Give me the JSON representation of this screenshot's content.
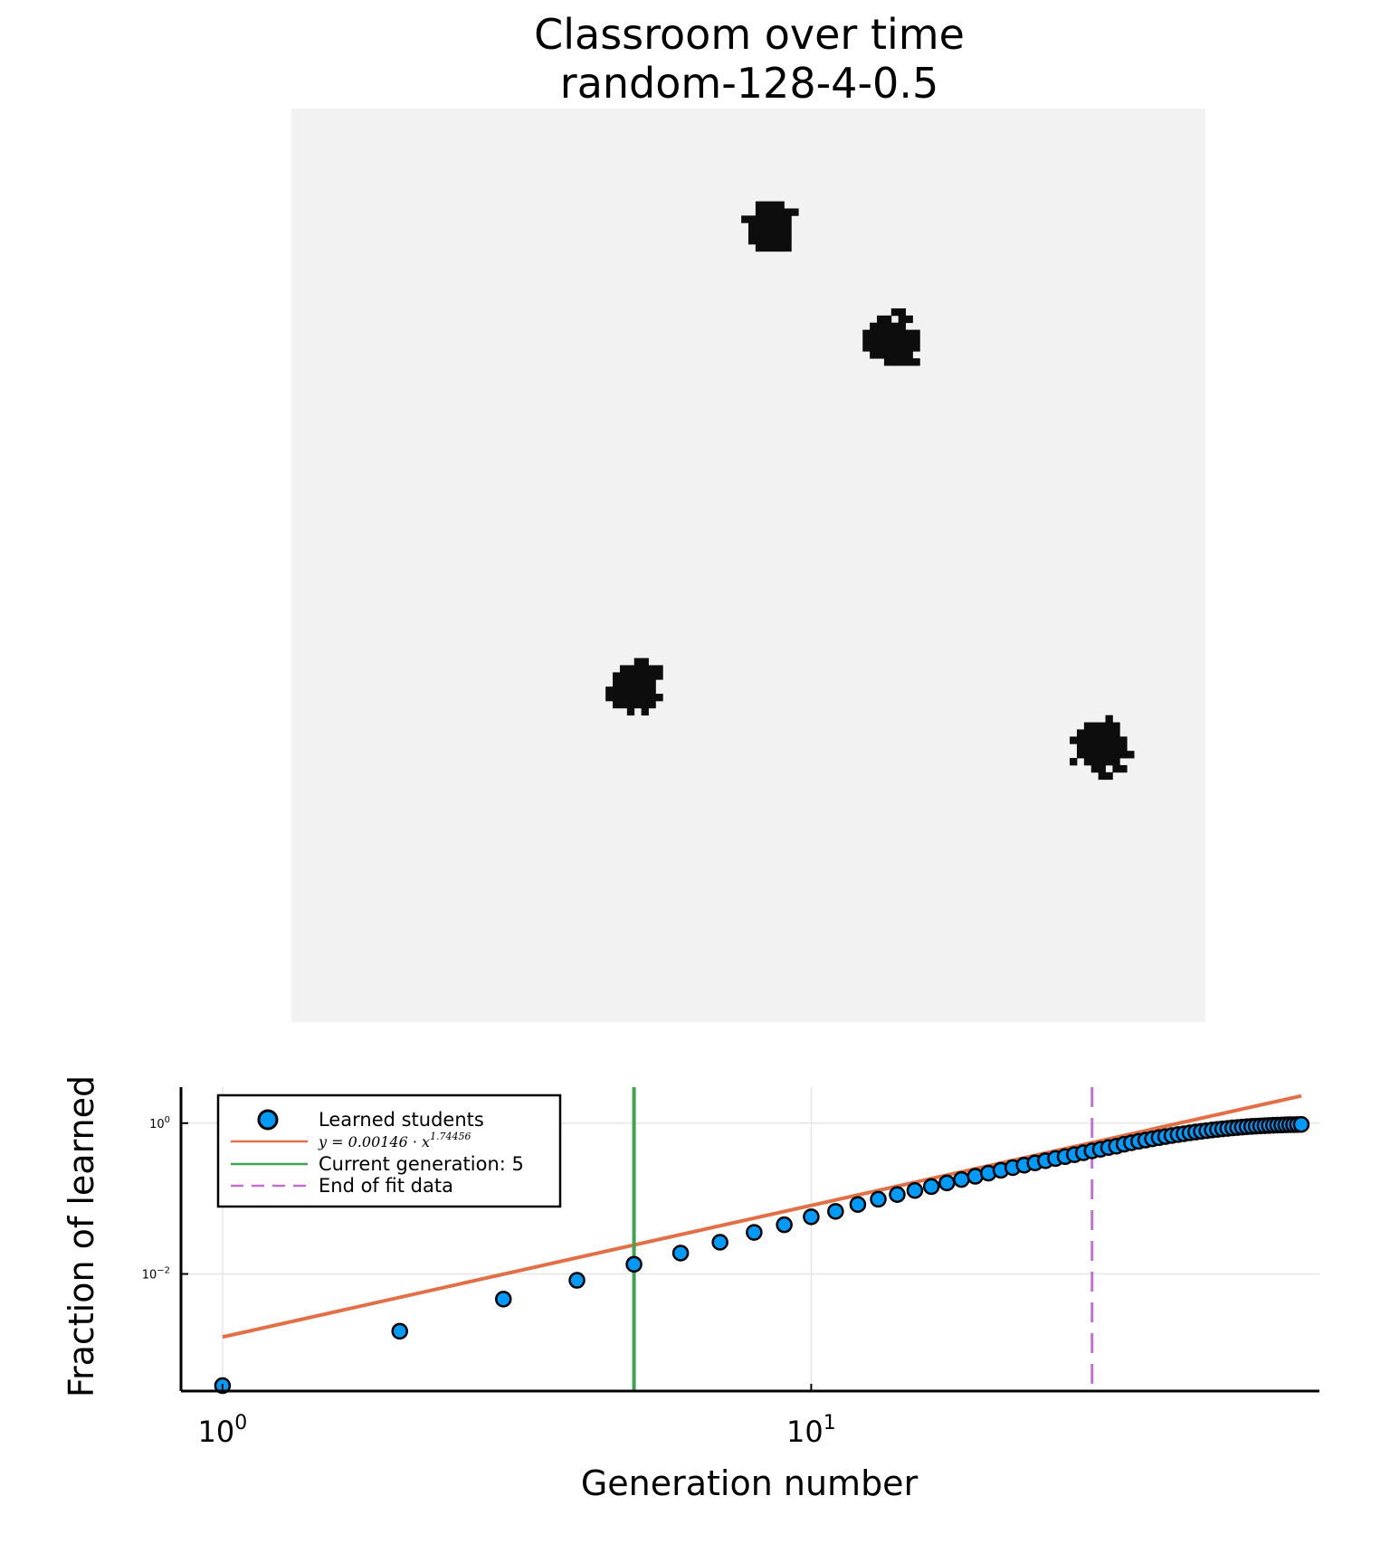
{
  "chart_data": [
    {
      "type": "heatmap",
      "title_lines": [
        "Classroom over time",
        "random-128-4-0.5"
      ],
      "grid_size": 128,
      "colors": {
        "background": "#f2f2f2",
        "learned": "#0d0d0d"
      },
      "clusters": [
        {
          "cx": 67,
          "cy": 16,
          "r": 3.6,
          "seed": 11
        },
        {
          "cx": 84,
          "cy": 32,
          "r": 3.6,
          "seed": 23
        },
        {
          "cx": 48,
          "cy": 81,
          "r": 3.6,
          "seed": 37
        },
        {
          "cx": 113,
          "cy": 89,
          "r": 3.8,
          "seed": 51
        }
      ]
    },
    {
      "type": "scatter",
      "xlabel": "Generation number",
      "ylabel": "Fraction of learned",
      "xscale": "log10",
      "yscale": "log10",
      "xlim": [
        0.85,
        73
      ],
      "ylim": [
        0.00028,
        3.0
      ],
      "x_ticks": [
        {
          "value": 1,
          "base": "10",
          "exp": "0"
        },
        {
          "value": 10,
          "base": "10",
          "exp": "1"
        }
      ],
      "y_ticks": [
        {
          "value": 1,
          "base": "10",
          "exp": "0"
        },
        {
          "value": 0.01,
          "base": "10",
          "exp": "−2"
        }
      ],
      "grid": true,
      "legend_position": "top-left",
      "series": [
        {
          "name": "Learned students",
          "kind": "scatter",
          "color": "#009af9",
          "x": [
            1,
            2,
            3,
            4,
            5,
            6,
            7,
            8,
            9,
            10,
            11,
            12,
            13,
            14,
            15,
            16,
            17,
            18,
            19,
            20,
            21,
            22,
            23,
            24,
            25,
            26,
            27,
            28,
            29,
            30,
            31,
            32,
            33,
            34,
            35,
            36,
            37,
            38,
            39,
            40,
            41,
            42,
            43,
            44,
            45,
            46,
            47,
            48,
            49,
            50,
            51,
            52,
            53,
            54,
            55,
            56,
            57,
            58,
            59,
            60,
            61,
            62,
            63,
            64,
            65,
            66,
            67,
            68
          ],
          "y": [
            0.00033,
            0.00174,
            0.00464,
            0.00824,
            0.01343,
            0.01892,
            0.02631,
            0.03558,
            0.0449,
            0.0573,
            0.0676,
            0.0835,
            0.0979,
            0.1129,
            0.1279,
            0.1441,
            0.1611,
            0.1788,
            0.1973,
            0.2169,
            0.2371,
            0.2568,
            0.2769,
            0.2971,
            0.3175,
            0.3393,
            0.3596,
            0.3815,
            0.4044,
            0.4283,
            0.4501,
            0.4745,
            0.4942,
            0.5255,
            0.5496,
            0.5734,
            0.5959,
            0.6195,
            0.6425,
            0.6646,
            0.6853,
            0.7054,
            0.7247,
            0.7436,
            0.7615,
            0.7788,
            0.7952,
            0.8107,
            0.8253,
            0.8391,
            0.8522,
            0.8644,
            0.8757,
            0.8861,
            0.8956,
            0.9043,
            0.9122,
            0.9193,
            0.9257,
            0.9314,
            0.9366,
            0.9412,
            0.9453,
            0.949,
            0.9523,
            0.9552,
            0.9578,
            0.96
          ]
        },
        {
          "name": "y = 0.00146 · x^1.74456",
          "legend_base": "y = 0.00146 · x",
          "legend_exp": "1.74456",
          "kind": "line",
          "color": "#e26f46",
          "coef": 0.00146,
          "power": 1.74456,
          "x_range": [
            1,
            68
          ]
        },
        {
          "name": "Current generation: 5",
          "kind": "vline",
          "color": "#3ea44e",
          "x": 5
        },
        {
          "name": "End of fit data",
          "kind": "vline-dashed",
          "color": "#c271d2",
          "x": 30
        }
      ]
    }
  ]
}
